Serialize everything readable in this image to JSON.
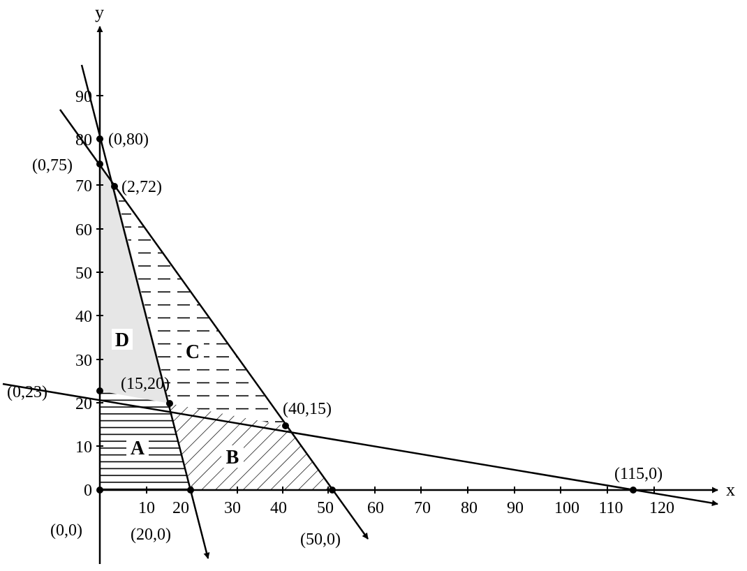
{
  "axes": {
    "x_label": "x",
    "y_label": "y",
    "x_ticks": [
      "10",
      "20",
      "30",
      "40",
      "50",
      "60",
      "70",
      "80",
      "90",
      "100",
      "110",
      "120"
    ],
    "y_ticks": [
      "0",
      "10",
      "20",
      "30",
      "40",
      "50",
      "60",
      "70",
      "80",
      "90"
    ]
  },
  "points": [
    {
      "id": "p-0-80",
      "label": "(0,80)",
      "x": 0,
      "y": 80
    },
    {
      "id": "p-0-75",
      "label": "(0,75)",
      "x": 0,
      "y": 75
    },
    {
      "id": "p-2-72",
      "label": "(2,72)",
      "x": 2,
      "y": 72
    },
    {
      "id": "p-0-23",
      "label": "(0,23)",
      "x": 0,
      "y": 23
    },
    {
      "id": "p-15-20",
      "label": "(15,20)",
      "x": 15,
      "y": 20
    },
    {
      "id": "p-40-15",
      "label": "(40,15)",
      "x": 40,
      "y": 15
    },
    {
      "id": "p-115-0",
      "label": "(115,0)",
      "x": 115,
      "y": 0
    },
    {
      "id": "p-0-0",
      "label": "(0,0)",
      "x": 0,
      "y": 0
    },
    {
      "id": "p-20-0",
      "label": "(20,0)",
      "x": 20,
      "y": 0
    },
    {
      "id": "p-50-0",
      "label": "(50,0)",
      "x": 50,
      "y": 0
    }
  ],
  "regions": [
    {
      "id": "region-a",
      "label": "A",
      "fill": "horizontal-lines"
    },
    {
      "id": "region-b",
      "label": "B",
      "fill": "diagonal-lines"
    },
    {
      "id": "region-c",
      "label": "C",
      "fill": "dashed-lines"
    },
    {
      "id": "region-d",
      "label": "D",
      "fill": "gray",
      "color": "#e6e6e6"
    }
  ]
}
